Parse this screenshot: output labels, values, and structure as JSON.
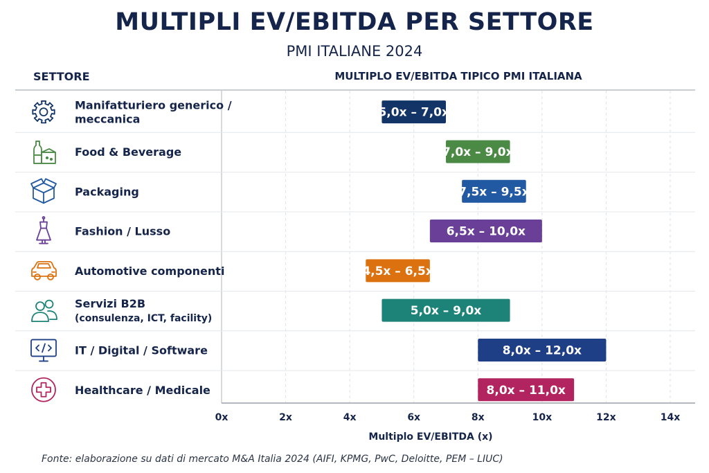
{
  "chart_data": {
    "type": "bar",
    "orientation": "horizontal-range",
    "title": "MULTIPLI EV/EBITDA PER SETTORE",
    "subtitle": "PMI ITALIANE 2024",
    "category_header": "SETTORE",
    "value_header": "MULTIPLO EV/EBITDA TIPICO PMI ITALIANA",
    "xlabel": "Multiplo EV/EBITDA (x)",
    "xlim": [
      0,
      14
    ],
    "xticks": [
      0,
      2,
      4,
      6,
      8,
      10,
      12,
      14
    ],
    "xtick_labels": [
      "0x",
      "2x",
      "4x",
      "6x",
      "8x",
      "10x",
      "12x",
      "14x"
    ],
    "grid": "vertical dashed",
    "categories": [
      {
        "lines": [
          "Manifatturiero generico /",
          "meccanica"
        ],
        "icon": "gear-icon",
        "low": 5.0,
        "high": 7.0,
        "label": "5,0x – 7,0x",
        "color": "#123466"
      },
      {
        "lines": [
          "Food & Beverage"
        ],
        "icon": "bottle-icon",
        "low": 7.0,
        "high": 9.0,
        "label": "7,0x – 9,0x",
        "color": "#4b8a45"
      },
      {
        "lines": [
          "Packaging"
        ],
        "icon": "box-icon",
        "low": 7.5,
        "high": 9.5,
        "label": "7,5x – 9,5x",
        "color": "#2259a3"
      },
      {
        "lines": [
          "Fashion / Lusso"
        ],
        "icon": "dress-icon",
        "low": 6.5,
        "high": 10.0,
        "label": "6,5x – 10,0x",
        "color": "#6a3f97"
      },
      {
        "lines": [
          "Automotive componenti"
        ],
        "icon": "car-icon",
        "low": 4.5,
        "high": 6.5,
        "label": "4,5x – 6,5x",
        "color": "#db720f"
      },
      {
        "lines": [
          "Servizi B2B",
          "(consulenza, ICT, facility)"
        ],
        "icon": "people-icon",
        "low": 5.0,
        "high": 9.0,
        "label": "5,0x – 9,0x",
        "color": "#1d8379"
      },
      {
        "lines": [
          "IT / Digital / Software"
        ],
        "icon": "monitor-code-icon",
        "low": 8.0,
        "high": 12.0,
        "label": "8,0x – 12,0x",
        "color": "#1e3f86"
      },
      {
        "lines": [
          "Healthcare / Medicale"
        ],
        "icon": "medical-cross-icon",
        "low": 8.0,
        "high": 11.0,
        "label": "8,0x – 11,0x",
        "color": "#b2245f"
      }
    ]
  },
  "footnote": "Fonte: elaborazione su dati di mercato M&A Italia 2024 (AIFI, KPMG, PwC, Deloitte, PEM – LIUC)"
}
